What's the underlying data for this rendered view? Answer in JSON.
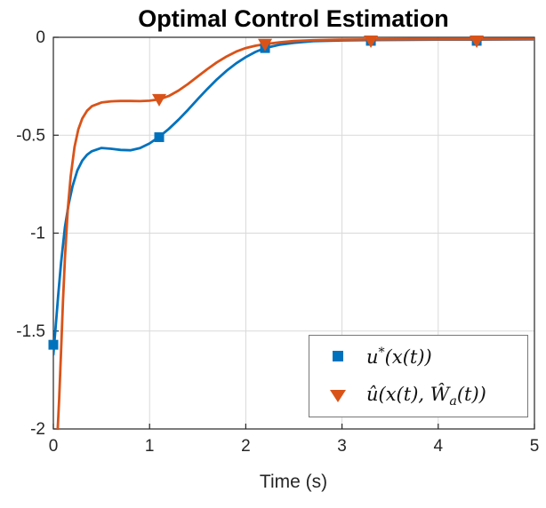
{
  "chart_data": {
    "type": "line",
    "title": "Optimal Control Estimation",
    "xlabel": "Time (s)",
    "ylabel": "",
    "xlim": [
      0,
      5
    ],
    "ylim": [
      -2,
      0
    ],
    "xticks": [
      0,
      1,
      2,
      3,
      4,
      5
    ],
    "xtick_labels": [
      "0",
      "1",
      "2",
      "3",
      "4",
      "5"
    ],
    "yticks": [
      0,
      -0.5,
      -1,
      -1.5,
      -2
    ],
    "ytick_labels": [
      "0",
      "-0.5",
      "-1",
      "-1.5",
      "-2"
    ],
    "grid": true,
    "grid_color": "#d9d9d9",
    "axis_color": "#262626",
    "background": "#ffffff",
    "series": [
      {
        "name": "u*(x(t))",
        "color": "#0072BD",
        "marker": "square",
        "x": [
          0,
          0.02,
          0.05,
          0.08,
          0.12,
          0.16,
          0.2,
          0.25,
          0.3,
          0.35,
          0.4,
          0.5,
          0.6,
          0.7,
          0.8,
          0.9,
          1.0,
          1.1,
          1.2,
          1.3,
          1.4,
          1.5,
          1.6,
          1.7,
          1.8,
          1.9,
          2.0,
          2.1,
          2.2,
          2.35,
          2.5,
          2.7,
          3.0,
          3.3,
          3.7,
          4.0,
          4.4,
          5.0
        ],
        "y": [
          -1.62,
          -1.5,
          -1.32,
          -1.15,
          -0.97,
          -0.85,
          -0.76,
          -0.68,
          -0.63,
          -0.6,
          -0.582,
          -0.565,
          -0.569,
          -0.575,
          -0.577,
          -0.566,
          -0.542,
          -0.508,
          -0.468,
          -0.421,
          -0.37,
          -0.316,
          -0.264,
          -0.215,
          -0.171,
          -0.133,
          -0.101,
          -0.075,
          -0.055,
          -0.038,
          -0.028,
          -0.02,
          -0.016,
          -0.014,
          -0.013,
          -0.012,
          -0.012,
          -0.011
        ],
        "marker_points": [
          [
            0,
            -1.57
          ],
          [
            1.1,
            -0.51
          ],
          [
            2.2,
            -0.055
          ],
          [
            3.3,
            -0.018
          ],
          [
            4.4,
            -0.018
          ]
        ]
      },
      {
        "name": "û(x(t), Ŵa(t))",
        "color": "#D95319",
        "marker": "triangle-down",
        "x": [
          0.045,
          0.06,
          0.08,
          0.1,
          0.12,
          0.15,
          0.18,
          0.22,
          0.26,
          0.3,
          0.35,
          0.4,
          0.5,
          0.6,
          0.7,
          0.8,
          0.9,
          1.0,
          1.1,
          1.2,
          1.3,
          1.4,
          1.5,
          1.6,
          1.7,
          1.8,
          1.9,
          2.0,
          2.1,
          2.2,
          2.35,
          2.5,
          2.7,
          3.0,
          3.3,
          3.7,
          4.0,
          4.4,
          5.0
        ],
        "y": [
          -2.0,
          -1.85,
          -1.6,
          -1.35,
          -1.13,
          -0.88,
          -0.71,
          -0.56,
          -0.47,
          -0.415,
          -0.375,
          -0.352,
          -0.333,
          -0.327,
          -0.325,
          -0.325,
          -0.326,
          -0.324,
          -0.317,
          -0.3,
          -0.272,
          -0.238,
          -0.2,
          -0.163,
          -0.128,
          -0.098,
          -0.073,
          -0.055,
          -0.043,
          -0.035,
          -0.026,
          -0.019,
          -0.015,
          -0.012,
          -0.011,
          -0.01,
          -0.01,
          -0.01,
          -0.009
        ],
        "marker_points": [
          [
            1.1,
            -0.317
          ],
          [
            2.2,
            -0.035
          ],
          [
            3.3,
            -0.018
          ],
          [
            4.4,
            -0.018
          ]
        ]
      }
    ],
    "legend": {
      "position": "bottom-right",
      "items": [
        {
          "marker": "square",
          "color": "#0072BD",
          "parts": {
            "base": "u",
            "sup": "*",
            "rest": "(x(t))"
          }
        },
        {
          "marker": "triangle-down",
          "color": "#D95319",
          "parts": {
            "base": "û(x(t), Ŵ",
            "sub": "a",
            "rest": "(t))"
          }
        }
      ]
    }
  }
}
